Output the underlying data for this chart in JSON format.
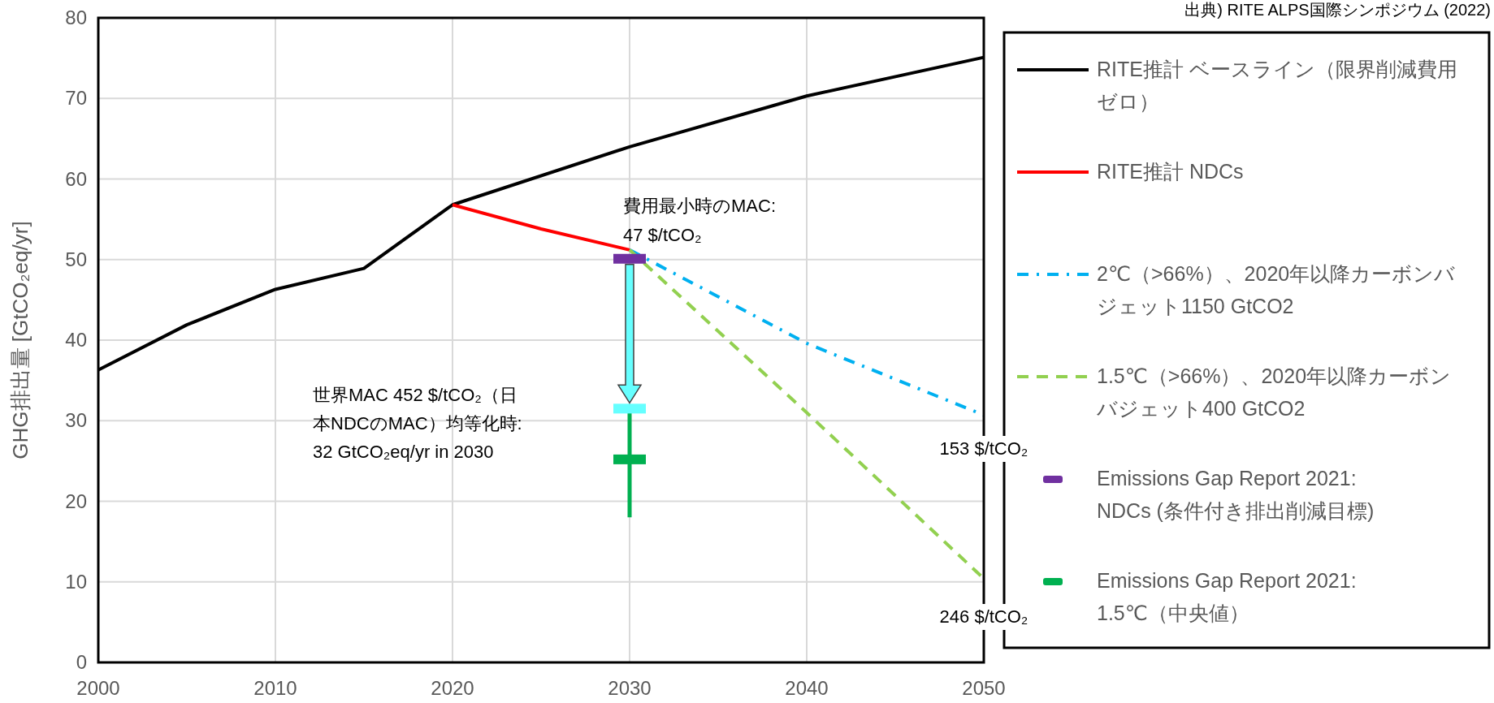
{
  "chart_data": {
    "type": "line",
    "ylabel": "GHG排出量 [GtCO₂eq/yr]",
    "xlim": [
      2000,
      2050
    ],
    "ylim": [
      0,
      80
    ],
    "xticks": [
      2000,
      2010,
      2020,
      2030,
      2040,
      2050
    ],
    "yticks": [
      0,
      10,
      20,
      30,
      40,
      50,
      60,
      70,
      80
    ],
    "grid": true,
    "legend": "right",
    "series": [
      {
        "name": "RITE推計 ベースライン（限界削減費用ゼロ）",
        "color": "#000000",
        "line_style": "solid",
        "x": [
          2000,
          2005,
          2010,
          2015,
          2020,
          2030,
          2040,
          2050
        ],
        "values": [
          36.3,
          41.9,
          46.3,
          48.9,
          56.8,
          64.0,
          70.3,
          75.1
        ]
      },
      {
        "name": "RITE推計 NDCs",
        "color": "#ff0000",
        "line_style": "solid",
        "x": [
          2020,
          2025,
          2030
        ],
        "values": [
          56.8,
          53.8,
          51.2
        ]
      },
      {
        "name": "2℃（>66%）、2020年以降カーボンバジェット1150 GtCO2",
        "color": "#00b0f0",
        "line_style": "dashdot",
        "x": [
          2030,
          2040,
          2050
        ],
        "values": [
          51.2,
          39.6,
          30.7
        ]
      },
      {
        "name": "1.5℃（>66%）、2020年以降カーボンバジェット400 GtCO2",
        "color": "#92d050",
        "line_style": "dashed",
        "x": [
          2030,
          2040,
          2050
        ],
        "values": [
          51.2,
          31.0,
          10.4
        ]
      },
      {
        "name": "Emissions Gap Report 2021:\nNDCs (条件付き排出削減目標)",
        "type": "scatter",
        "color": "#7030a0",
        "x": [
          2030
        ],
        "values": [
          50.1
        ]
      },
      {
        "name": "Emissions Gap Report 2021:\n 1.5℃（中央値）",
        "type": "scatter",
        "color": "#00b050",
        "x": [
          2030
        ],
        "values": [
          25.2
        ],
        "errors": [
          [
            18,
            31
          ]
        ]
      },
      {
        "type": "scatter",
        "color": "#66ffff",
        "x": [
          2030
        ],
        "values": [
          31.5
        ]
      }
    ],
    "annotations": [
      "費用最小時のMAC:\n47 $/tCO₂",
      "世界MAC 452 $/tCO₂（日本NDCのMAC）均等化時:\n32 GtCO₂eq/yr in 2030",
      "153 $/tCO₂",
      "246 $/tCO₂",
      "出典) RITE ALPS国際シンポジウム (2022)"
    ]
  }
}
